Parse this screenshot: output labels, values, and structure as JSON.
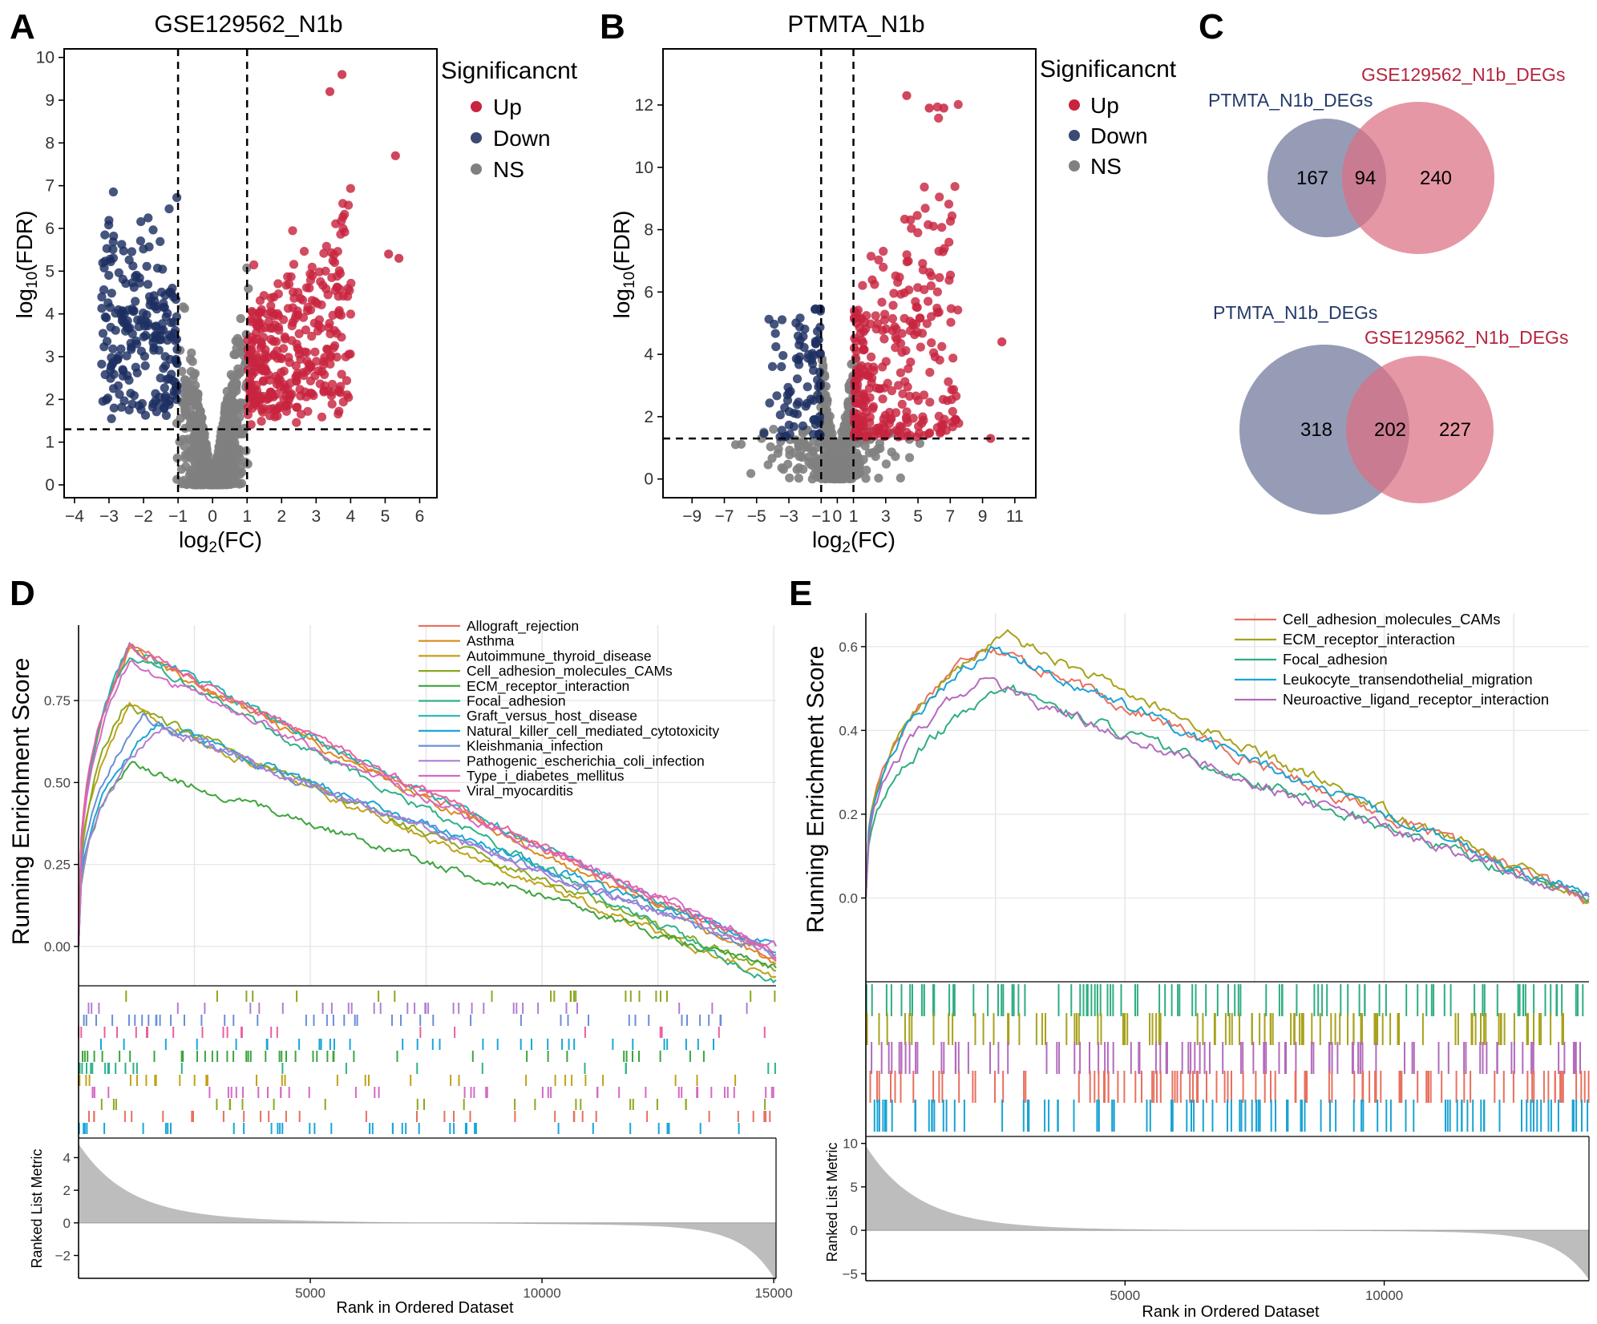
{
  "colors": {
    "up": "#c8243f",
    "down": "#1d2f61",
    "ns": "#808080",
    "venn_left": "#7f86a6",
    "venn_right": "#dc6f82",
    "ptmta_text": "#243a6b",
    "gse_text": "#b7243f",
    "ranked_fill": "#bdbdbd",
    "grid": "#e6e6e6"
  },
  "panels": {
    "A": {
      "letter": "A",
      "title": "GSE129562_N1b"
    },
    "B": {
      "letter": "B",
      "title": "PTMTA_N1b"
    },
    "C": {
      "letter": "C"
    },
    "D": {
      "letter": "D"
    },
    "E": {
      "letter": "E"
    }
  },
  "chart_data": [
    {
      "id": "volcano-A",
      "type": "scatter",
      "title": "GSE129562_N1b",
      "xlabel": "log2(FC)",
      "ylabel": "log10(FDR)",
      "xlim": [
        -4.3,
        6.5
      ],
      "ylim": [
        -0.3,
        10.2
      ],
      "xticks": [
        -4,
        -3,
        -2,
        -1,
        0,
        1,
        2,
        3,
        4,
        5,
        6
      ],
      "yticks": [
        0,
        1,
        2,
        3,
        4,
        5,
        6,
        7,
        8,
        9,
        10
      ],
      "thresholds": {
        "x": [
          -1,
          1
        ],
        "y": 1.3
      },
      "legend": {
        "title": "Significancnt",
        "entries": [
          "Up",
          "Down",
          "NS"
        ],
        "position": "right"
      },
      "highlighted_up_points": [
        [
          3.75,
          9.6
        ],
        [
          3.4,
          9.2
        ],
        [
          5.3,
          7.7
        ],
        [
          5.1,
          5.4
        ],
        [
          5.4,
          5.3
        ]
      ]
    },
    {
      "id": "volcano-B",
      "type": "scatter",
      "title": "PTMTA_N1b",
      "xlabel": "log2(FC)",
      "ylabel": "log10(FDR)",
      "xlim": [
        -10.8,
        12.3
      ],
      "ylim": [
        -0.6,
        13.8
      ],
      "xticks": [
        -9,
        -7,
        -5,
        -3,
        -1,
        0,
        1,
        3,
        5,
        7,
        9,
        11
      ],
      "yticks": [
        0,
        2,
        4,
        6,
        8,
        10,
        12
      ],
      "thresholds": {
        "x": [
          -1,
          1
        ],
        "y": 1.3
      },
      "legend": {
        "title": "Significancnt",
        "entries": [
          "Up",
          "Down",
          "NS"
        ],
        "position": "right"
      },
      "highlighted_up_points": [
        [
          4.3,
          12.3
        ],
        [
          5.7,
          11.9
        ],
        [
          6.6,
          11.9
        ],
        [
          10.2,
          4.4
        ],
        [
          9.5,
          1.3
        ]
      ]
    },
    {
      "id": "venn-top",
      "type": "venn",
      "sets": [
        {
          "name": "PTMTA_N1b_DEGs",
          "only": 167
        },
        {
          "name": "GSE129562_N1b_DEGs",
          "only": 240
        }
      ],
      "intersection": 94
    },
    {
      "id": "venn-bottom",
      "type": "venn",
      "sets": [
        {
          "name": "PTMTA_N1b_DEGs",
          "only": 318
        },
        {
          "name": "GSE129562_N1b_DEGs",
          "only": 227
        }
      ],
      "intersection": 202
    },
    {
      "id": "gsea-D",
      "type": "line",
      "ylabel": "Running Enrichment Score",
      "xlabel": "Rank in Ordered Dataset",
      "xlim": [
        0,
        15050
      ],
      "ylim": [
        -0.12,
        0.98
      ],
      "yticks": [
        0.0,
        0.25,
        0.5,
        0.75
      ],
      "ytick_labels": [
        "0.00",
        "0.25",
        "0.50",
        "0.75"
      ],
      "xticks": [
        5000,
        10000,
        15000
      ],
      "ranked_metric": {
        "label": "Ranked List Metric",
        "ylim": [
          -3.4,
          5.2
        ],
        "yticks": [
          -2,
          0,
          2,
          4
        ],
        "max": 4.6,
        "min": -3.4
      },
      "series": [
        {
          "name": "Allograft_rejection",
          "color": "#e8705f",
          "peak_x": 1100,
          "peak": 0.92,
          "end": -0.03
        },
        {
          "name": "Asthma",
          "color": "#d98a1d",
          "peak_x": 1100,
          "peak": 0.91,
          "end": -0.05
        },
        {
          "name": "Autoimmune_thyroid_disease",
          "color": "#c0a219",
          "peak_x": 1100,
          "peak": 0.73,
          "end": -0.1
        },
        {
          "name": "Cell_adhesion_molecules_CAMs",
          "color": "#8ca81f",
          "peak_x": 1000,
          "peak": 0.74,
          "end": -0.08
        },
        {
          "name": "ECM_receptor_interaction",
          "color": "#3da43e",
          "peak_x": 1100,
          "peak": 0.56,
          "end": -0.07
        },
        {
          "name": "Focal_adhesion",
          "color": "#2db28a",
          "peak_x": 1100,
          "peak": 0.9,
          "end": -0.11
        },
        {
          "name": "Graft_versus_host_disease",
          "color": "#22b4b4",
          "peak_x": 1100,
          "peak": 0.92,
          "end": -0.02
        },
        {
          "name": "Natural_killer_cell_mediated_cytotoxicity",
          "color": "#1aa6d8",
          "peak_x": 1700,
          "peak": 0.68,
          "end": 0.0
        },
        {
          "name": "Kleishmania_infection",
          "color": "#6a8fd6",
          "peak_x": 1400,
          "peak": 0.7,
          "end": -0.03
        },
        {
          "name": "Pathogenic_escherichia_coli_infection",
          "color": "#b07fd0",
          "peak_x": 1800,
          "peak": 0.67,
          "end": -0.02
        },
        {
          "name": "Type_i_diabetes_mellitus",
          "color": "#d469c8",
          "peak_x": 1100,
          "peak": 0.87,
          "end": 0.0
        },
        {
          "name": "Viral_myocarditis",
          "color": "#ea5fa0",
          "peak_x": 1100,
          "peak": 0.92,
          "end": -0.02
        }
      ]
    },
    {
      "id": "gsea-E",
      "type": "line",
      "ylabel": "Running Enrichment Score",
      "xlabel": "Rank in Ordered Dataset",
      "xlim": [
        0,
        13950
      ],
      "ylim": [
        -0.2,
        0.68
      ],
      "yticks": [
        0.0,
        0.2,
        0.4,
        0.6
      ],
      "ytick_labels": [
        "0.0",
        "0.2",
        "0.4",
        "0.6"
      ],
      "xticks": [
        5000,
        10000
      ],
      "ranked_metric": {
        "label": "Ranked List Metric",
        "ylim": [
          -5.8,
          10.8
        ],
        "yticks": [
          -5,
          0,
          5,
          10
        ],
        "max": 9.5,
        "min": -5.5
      },
      "series": [
        {
          "name": "Cell_adhesion_molecules_CAMs",
          "color": "#e8705f",
          "peak_x": 2300,
          "peak": 0.61,
          "end": 0.0
        },
        {
          "name": "ECM_receptor_interaction",
          "color": "#a8a21c",
          "peak_x": 2700,
          "peak": 0.63,
          "end": 0.0
        },
        {
          "name": "Focal_adhesion",
          "color": "#2fae80",
          "peak_x": 2800,
          "peak": 0.5,
          "end": 0.0
        },
        {
          "name": "Leukocyte_transendothelial_migration",
          "color": "#1aa3d3",
          "peak_x": 2500,
          "peak": 0.6,
          "end": 0.0
        },
        {
          "name": "Neuroactive_ligand_receptor_interaction",
          "color": "#b36bbd",
          "peak_x": 2200,
          "peak": 0.52,
          "end": 0.0
        }
      ]
    }
  ]
}
